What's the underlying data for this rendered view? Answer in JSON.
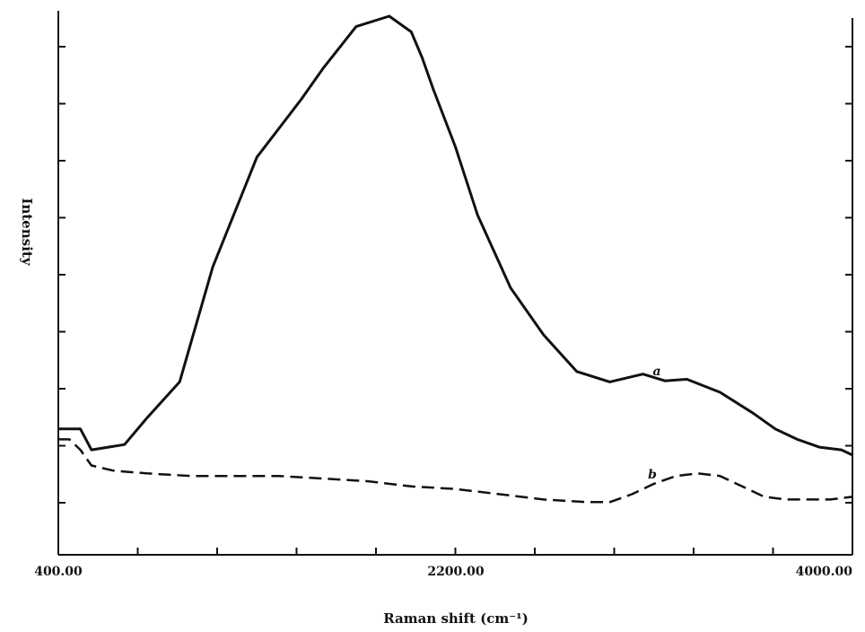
{
  "chart_data": {
    "type": "line",
    "xlabel": "Raman shift (cm⁻¹)",
    "ylabel": "Intensity",
    "xlim": [
      400,
      4000
    ],
    "ylim": [
      0,
      100
    ],
    "x_ticks": [
      400,
      2200,
      4000
    ],
    "x_tick_labels": [
      "400.00",
      "2200.00",
      "4000.00"
    ],
    "grid": false,
    "series": [
      {
        "name": "a",
        "style": "solid",
        "x": [
          400,
          500,
          550,
          700,
          800,
          950,
          1100,
          1300,
          1500,
          1600,
          1750,
          1900,
          2000,
          2050,
          2100,
          2200,
          2300,
          2450,
          2600,
          2750,
          2900,
          3050,
          3150,
          3250,
          3400,
          3550,
          3650,
          3750,
          3850,
          3950,
          4000
        ],
        "y": [
          21,
          21,
          17,
          18,
          23,
          30,
          52,
          73,
          84,
          90,
          98,
          100,
          97,
          92,
          86,
          75,
          62,
          48,
          39,
          32,
          30,
          31.5,
          30.2,
          30.5,
          28,
          24,
          21,
          19,
          17.5,
          17,
          16
        ]
      },
      {
        "name": "b",
        "style": "dashed",
        "x": [
          400,
          450,
          500,
          550,
          650,
          800,
          1000,
          1200,
          1400,
          1600,
          1800,
          2000,
          2200,
          2400,
          2600,
          2800,
          2900,
          3000,
          3100,
          3200,
          3300,
          3400,
          3500,
          3600,
          3700,
          3800,
          3900,
          4000
        ],
        "y": [
          19,
          19,
          17,
          14,
          13,
          12.5,
          12,
          12,
          12,
          11.5,
          11,
          10,
          9.5,
          8.5,
          7.5,
          7,
          7,
          8.5,
          10.5,
          12,
          12.5,
          12,
          10,
          8,
          7.5,
          7.5,
          7.5,
          8
        ]
      }
    ]
  }
}
